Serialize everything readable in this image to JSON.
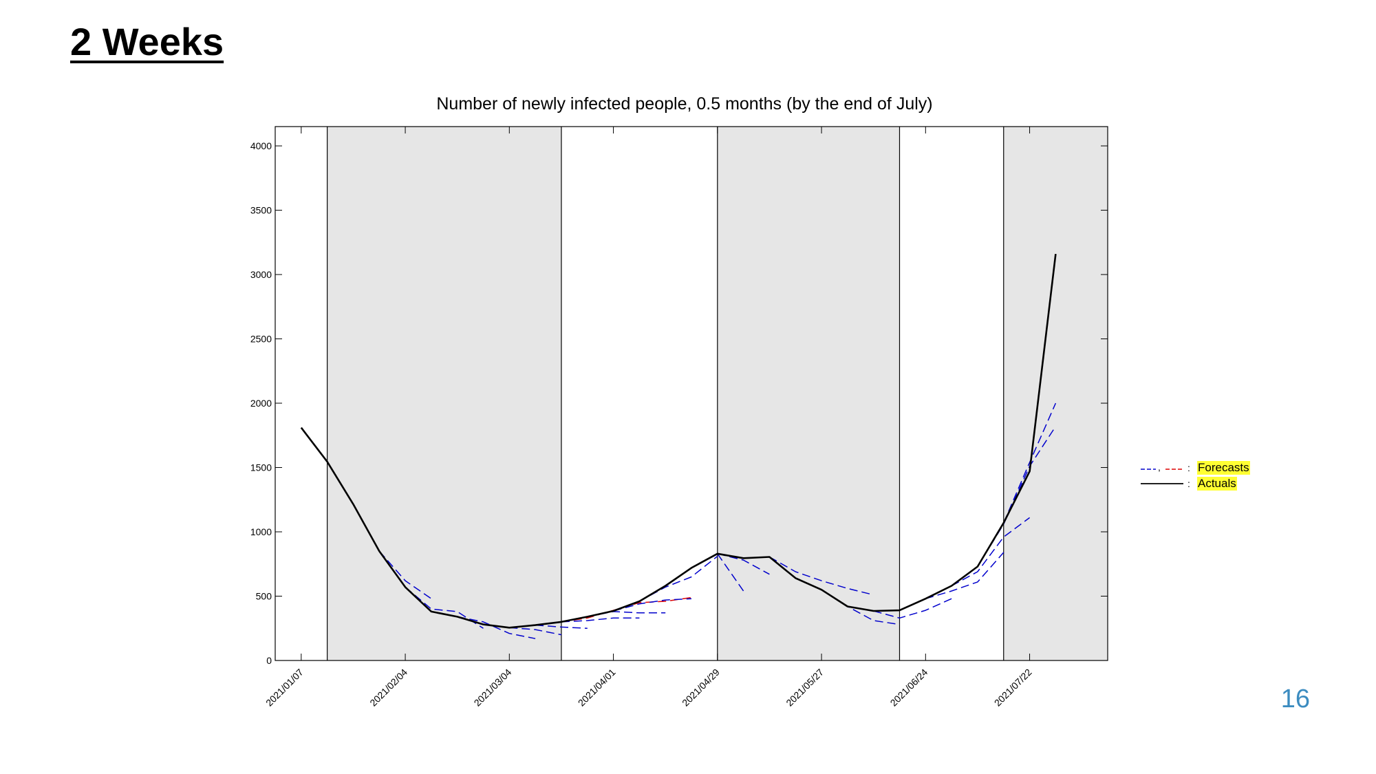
{
  "slide": {
    "title": "2 Weeks",
    "page_number": "16"
  },
  "chart_data": {
    "type": "line",
    "title": "Number of newly infected people, 0.5 months (by the end of July)",
    "xlabel": "",
    "ylabel": "",
    "xlim": [
      "2020-12-31",
      "2021-08-12"
    ],
    "ylim": [
      0,
      4150
    ],
    "y_ticks": [
      0,
      500,
      1000,
      1500,
      2000,
      2500,
      3000,
      3500,
      4000
    ],
    "x_ticks": [
      "2021/01/07",
      "2021/02/04",
      "2021/03/04",
      "2021/04/01",
      "2021/04/29",
      "2021/05/27",
      "2021/06/24",
      "2021/07/22"
    ],
    "x_tick_dates": [
      "2021-01-07",
      "2021-02-04",
      "2021-03-04",
      "2021-04-01",
      "2021-04-29",
      "2021-05-27",
      "2021-06-24",
      "2021-07-22"
    ],
    "grid": false,
    "shaded_periods": [
      {
        "start": "2021-01-14",
        "end": "2021-03-18",
        "color": "#e6e6e6"
      },
      {
        "start": "2021-04-29",
        "end": "2021-06-17",
        "color": "#e6e6e6"
      },
      {
        "start": "2021-07-15",
        "end": "2021-08-12",
        "color": "#e6e6e6"
      }
    ],
    "vertical_lines": [
      "2021-01-14",
      "2021-03-18",
      "2021-04-29",
      "2021-06-17",
      "2021-07-15"
    ],
    "legend": {
      "placement": "right",
      "entries": [
        {
          "name": "Forecasts",
          "colors": [
            "#0000cc",
            "#dd0000"
          ],
          "style": "dashed"
        },
        {
          "name": "Actuals",
          "colors": [
            "#000000"
          ],
          "style": "solid"
        }
      ]
    },
    "series": [
      {
        "name": "Actuals",
        "color": "#000000",
        "style": "solid",
        "points": [
          [
            "2021-01-07",
            1810
          ],
          [
            "2021-01-14",
            1545
          ],
          [
            "2021-01-21",
            1215
          ],
          [
            "2021-01-28",
            850
          ],
          [
            "2021-02-04",
            570
          ],
          [
            "2021-02-11",
            380
          ],
          [
            "2021-02-18",
            340
          ],
          [
            "2021-02-25",
            280
          ],
          [
            "2021-03-04",
            255
          ],
          [
            "2021-03-11",
            275
          ],
          [
            "2021-03-18",
            300
          ],
          [
            "2021-03-25",
            340
          ],
          [
            "2021-04-01",
            385
          ],
          [
            "2021-04-08",
            460
          ],
          [
            "2021-04-15",
            580
          ],
          [
            "2021-04-22",
            720
          ],
          [
            "2021-04-29",
            830
          ],
          [
            "2021-05-06",
            795
          ],
          [
            "2021-05-13",
            805
          ],
          [
            "2021-05-20",
            640
          ],
          [
            "2021-05-27",
            550
          ],
          [
            "2021-06-03",
            420
          ],
          [
            "2021-06-10",
            385
          ],
          [
            "2021-06-17",
            390
          ],
          [
            "2021-06-24",
            480
          ],
          [
            "2021-07-01",
            580
          ],
          [
            "2021-07-08",
            730
          ],
          [
            "2021-07-15",
            1070
          ],
          [
            "2021-07-22",
            1470
          ],
          [
            "2021-07-29",
            3160
          ]
        ]
      },
      {
        "name": "",
        "color": "#0000cc",
        "style": "dashed",
        "points": [
          [
            "2021-01-28",
            850
          ],
          [
            "2021-02-04",
            620
          ],
          [
            "2021-02-11",
            480
          ]
        ]
      },
      {
        "name": "",
        "color": "#0000cc",
        "style": "dashed",
        "points": [
          [
            "2021-02-04",
            570
          ],
          [
            "2021-02-11",
            400
          ],
          [
            "2021-02-18",
            380
          ],
          [
            "2021-02-25",
            250
          ]
        ]
      },
      {
        "name": "",
        "color": "#0000cc",
        "style": "dashed",
        "points": [
          [
            "2021-02-18",
            340
          ],
          [
            "2021-02-25",
            300
          ],
          [
            "2021-03-04",
            210
          ],
          [
            "2021-03-11",
            170
          ]
        ]
      },
      {
        "name": "",
        "color": "#0000cc",
        "style": "dashed",
        "points": [
          [
            "2021-03-04",
            255
          ],
          [
            "2021-03-11",
            240
          ],
          [
            "2021-03-18",
            200
          ]
        ]
      },
      {
        "name": "",
        "color": "#0000cc",
        "style": "dashed",
        "points": [
          [
            "2021-03-11",
            275
          ],
          [
            "2021-03-18",
            260
          ],
          [
            "2021-03-25",
            250
          ]
        ]
      },
      {
        "name": "",
        "color": "#0000cc",
        "style": "dashed",
        "points": [
          [
            "2021-03-18",
            300
          ],
          [
            "2021-03-25",
            310
          ],
          [
            "2021-04-01",
            330
          ],
          [
            "2021-04-08",
            330
          ]
        ]
      },
      {
        "name": "",
        "color": "#0000cc",
        "style": "dashed",
        "points": [
          [
            "2021-03-25",
            340
          ],
          [
            "2021-04-01",
            380
          ],
          [
            "2021-04-08",
            370
          ],
          [
            "2021-04-15",
            370
          ]
        ]
      },
      {
        "name": "",
        "color": "#dd0000",
        "style": "dashed",
        "points": [
          [
            "2021-03-18",
            300
          ],
          [
            "2021-03-25",
            330
          ],
          [
            "2021-04-01",
            390
          ],
          [
            "2021-04-08",
            450
          ],
          [
            "2021-04-15",
            460
          ],
          [
            "2021-04-22",
            490
          ]
        ]
      },
      {
        "name": "",
        "color": "#0000cc",
        "style": "dashed",
        "points": [
          [
            "2021-04-01",
            385
          ],
          [
            "2021-04-08",
            440
          ],
          [
            "2021-04-15",
            470
          ],
          [
            "2021-04-22",
            480
          ]
        ]
      },
      {
        "name": "",
        "color": "#0000cc",
        "style": "dashed",
        "points": [
          [
            "2021-04-08",
            460
          ],
          [
            "2021-04-15",
            570
          ],
          [
            "2021-04-22",
            650
          ],
          [
            "2021-04-29",
            810
          ]
        ]
      },
      {
        "name": "",
        "color": "#0000cc",
        "style": "dashed",
        "points": [
          [
            "2021-04-29",
            830
          ],
          [
            "2021-05-06",
            540
          ]
        ]
      },
      {
        "name": "",
        "color": "#0000cc",
        "style": "dashed",
        "points": [
          [
            "2021-04-29",
            830
          ],
          [
            "2021-05-06",
            780
          ],
          [
            "2021-05-13",
            670
          ]
        ]
      },
      {
        "name": "",
        "color": "#0000cc",
        "style": "dashed",
        "points": [
          [
            "2021-05-13",
            805
          ],
          [
            "2021-05-20",
            690
          ],
          [
            "2021-05-27",
            620
          ],
          [
            "2021-06-03",
            560
          ],
          [
            "2021-06-10",
            510
          ]
        ]
      },
      {
        "name": "",
        "color": "#0000cc",
        "style": "dashed",
        "points": [
          [
            "2021-05-27",
            550
          ],
          [
            "2021-06-03",
            420
          ],
          [
            "2021-06-10",
            310
          ],
          [
            "2021-06-17",
            280
          ]
        ]
      },
      {
        "name": "",
        "color": "#0000cc",
        "style": "dashed",
        "points": [
          [
            "2021-06-10",
            385
          ],
          [
            "2021-06-17",
            330
          ],
          [
            "2021-06-24",
            390
          ],
          [
            "2021-07-01",
            480
          ]
        ]
      },
      {
        "name": "",
        "color": "#0000cc",
        "style": "dashed",
        "points": [
          [
            "2021-06-24",
            480
          ],
          [
            "2021-07-01",
            540
          ],
          [
            "2021-07-08",
            610
          ],
          [
            "2021-07-15",
            840
          ]
        ]
      },
      {
        "name": "",
        "color": "#0000cc",
        "style": "dashed",
        "points": [
          [
            "2021-07-01",
            580
          ],
          [
            "2021-07-08",
            690
          ],
          [
            "2021-07-15",
            960
          ],
          [
            "2021-07-22",
            1110
          ]
        ]
      },
      {
        "name": "",
        "color": "#0000cc",
        "style": "dashed",
        "points": [
          [
            "2021-07-08",
            730
          ],
          [
            "2021-07-15",
            1060
          ],
          [
            "2021-07-22",
            1510
          ],
          [
            "2021-07-29",
            1820
          ]
        ]
      },
      {
        "name": "",
        "color": "#0000cc",
        "style": "dashed",
        "points": [
          [
            "2021-07-15",
            1070
          ],
          [
            "2021-07-22",
            1540
          ],
          [
            "2021-07-29",
            2000
          ]
        ]
      }
    ]
  }
}
